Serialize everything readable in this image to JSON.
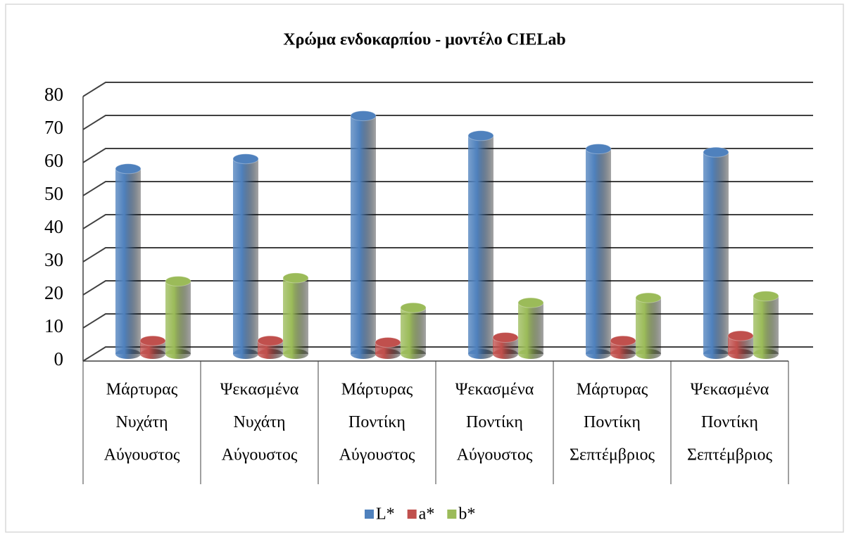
{
  "chart_data": {
    "type": "bar3d",
    "title": "Χρώμα ενδοκαρπίου - μοντέλο CIELab",
    "categories": [
      [
        "Μάρτυρας",
        "Νυχάτη",
        "Αύγουστος"
      ],
      [
        "Ψεκασμένα",
        "Νυχάτη",
        "Αύγουστος"
      ],
      [
        "Μάρτυρας",
        "Ποντίκη",
        "Αύγουστος"
      ],
      [
        "Ψεκασμένα",
        "Ποντίκη",
        "Αύγουστος"
      ],
      [
        "Μάρτυρας",
        "Ποντίκη",
        "Σεπτέμβριος"
      ],
      [
        "Ψεκασμένα",
        "Ποντίκη",
        "Σεπτέμβριος"
      ]
    ],
    "series": [
      {
        "name": "L*",
        "color": "#4f81bd",
        "values": [
          56,
          59,
          72,
          66,
          62,
          61
        ]
      },
      {
        "name": "a*",
        "color": "#c0504d",
        "values": [
          4,
          4,
          3.5,
          5,
          4,
          5.5
        ]
      },
      {
        "name": "b*",
        "color": "#9bbb59",
        "values": [
          22,
          23,
          14,
          15.5,
          17,
          17.5
        ]
      }
    ],
    "ylim": [
      0,
      80
    ],
    "yticks": [
      0,
      10,
      20,
      30,
      40,
      50,
      60,
      70,
      80
    ],
    "grid": true,
    "legend": "bottom"
  }
}
